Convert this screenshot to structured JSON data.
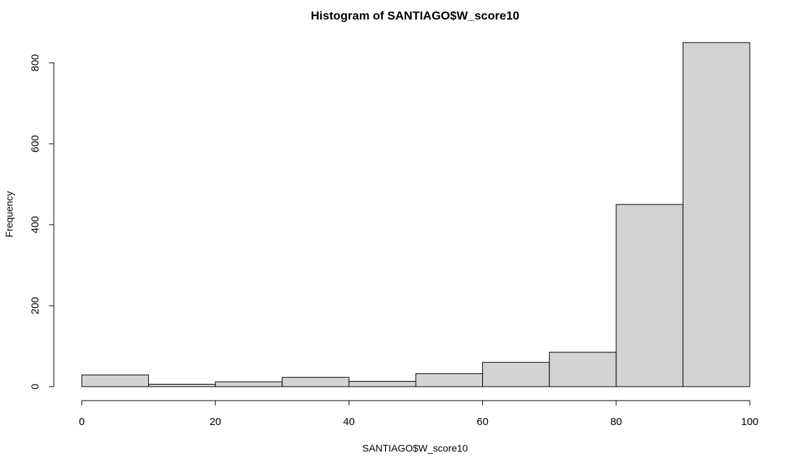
{
  "chart_data": {
    "type": "bar",
    "title": "Histogram of SANTIAGO$W_score10",
    "xlabel": "SANTIAGO$W_score10",
    "ylabel": "Frequency",
    "bins": [
      [
        0,
        10
      ],
      [
        10,
        20
      ],
      [
        20,
        30
      ],
      [
        30,
        40
      ],
      [
        40,
        50
      ],
      [
        50,
        60
      ],
      [
        60,
        70
      ],
      [
        70,
        80
      ],
      [
        80,
        90
      ],
      [
        90,
        100
      ]
    ],
    "values": [
      29,
      6,
      12,
      23,
      13,
      32,
      60,
      85,
      450,
      850
    ],
    "xlim": [
      0,
      100
    ],
    "ylim": [
      0,
      850
    ],
    "x_ticks": [
      0,
      20,
      40,
      60,
      80,
      100
    ],
    "y_ticks": [
      0,
      200,
      400,
      600,
      800
    ],
    "grid": false,
    "legend": "none",
    "bar_color": "#d3d3d3",
    "edge_color": "#000000"
  }
}
